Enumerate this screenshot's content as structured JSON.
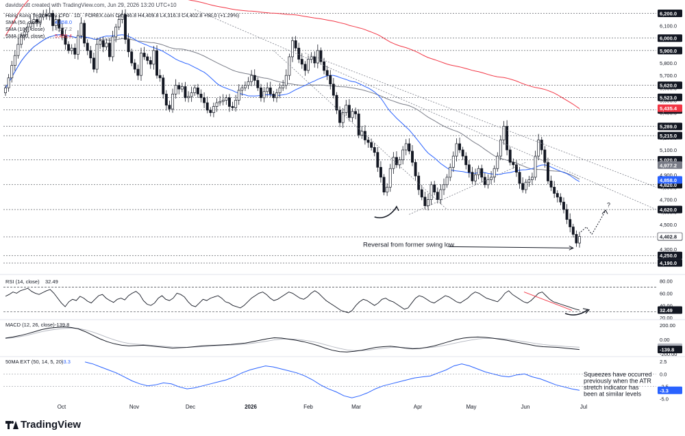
{
  "header": {
    "credit": "davidscutt created with TradingView.com, Jun 29, 2026 13:20 UTC+10"
  },
  "brand": {
    "name": "TradingView",
    "icon": "tradingview-logo-icon"
  },
  "chart_data": [
    {
      "type": "candlestick",
      "panel": "price",
      "title": "Hong Kong Tech Index CFD · 1D · FOREX.com",
      "ohlc_readout": "O4,346.8 H4,409.8 L4,316.3 C4,402.8 +56.0 (+1.29%)",
      "legend": [
        {
          "label": "SMA (50, close)",
          "value": "4,858.0",
          "color": "#2962ff"
        },
        {
          "label": "SMA (100, close)",
          "value": "4,977.2",
          "color": "#787b86"
        },
        {
          "label": "SMA (200, close)",
          "value": "5,435.4",
          "color": "#f23645"
        }
      ],
      "ylim": [
        4130,
        6230
      ],
      "y_ticks": [
        "6,100.0",
        "6,000.0",
        "5,900.0",
        "5,800.0",
        "5,700.0",
        "5,600.0",
        "5,500.0",
        "5,400.0",
        "5,300.0",
        "5,200.0",
        "5,100.0",
        "5,000.0",
        "4,900.0",
        "4,800.0",
        "4,700.0",
        "4,600.0",
        "4,500.0",
        "4,300.0",
        "4,200.0"
      ],
      "y_ticks_values": [
        6100,
        6000,
        5900,
        5800,
        5700,
        5600,
        5500,
        5400,
        5300,
        5200,
        5100,
        5000,
        4900,
        4800,
        4700,
        4600,
        4500,
        4300,
        4200
      ],
      "levels": [
        {
          "label": "6,200.0",
          "value": 6200,
          "style": "dashed",
          "color": "#131722"
        },
        {
          "label": "6,000.0",
          "value": 6000,
          "style": "dashed",
          "color": "#131722"
        },
        {
          "label": "5,900.0",
          "value": 5900,
          "style": "dashed",
          "color": "#131722"
        },
        {
          "label": "5,620.0",
          "value": 5620,
          "style": "dashed",
          "color": "#131722"
        },
        {
          "label": "5,523.0",
          "value": 5523,
          "style": "dashed",
          "color": "#131722"
        },
        {
          "label": "5,422.0",
          "value": 5422,
          "style": "dashed",
          "color": "#131722"
        },
        {
          "label": "5,289.0",
          "value": 5289,
          "style": "dashed",
          "color": "#131722"
        },
        {
          "label": "5,215.0",
          "value": 5215,
          "style": "dashed",
          "color": "#131722"
        },
        {
          "label": "5,020.0",
          "value": 5020,
          "style": "dashed",
          "color": "#131722"
        },
        {
          "label": "4,820.0",
          "value": 4820,
          "style": "dashed",
          "color": "#131722"
        },
        {
          "label": "4,620.0",
          "value": 4620,
          "style": "dashed",
          "color": "#131722"
        },
        {
          "label": "4,400.0",
          "value": 4400,
          "style": "dashed",
          "color": "#131722"
        },
        {
          "label": "4,250.0",
          "value": 4250,
          "style": "dashed",
          "color": "#131722"
        },
        {
          "label": "4,190.0",
          "value": 4190,
          "style": "dashed",
          "color": "#131722"
        }
      ],
      "badges": [
        {
          "label": "5,435.4",
          "value": 5435.4,
          "color": "#f23645"
        },
        {
          "label": "4,977.2",
          "value": 4977.2,
          "color": "#787b86"
        },
        {
          "label": "4,858.0",
          "value": 4858.0,
          "color": "#2962ff"
        },
        {
          "label": "4,402.8",
          "value": 4402.8,
          "color": "#ffffff",
          "text_color": "#131722"
        }
      ],
      "closes": [
        5600,
        5680,
        5780,
        5860,
        5950,
        6020,
        6050,
        6090,
        6120,
        6150,
        6130,
        6170,
        6190,
        6180,
        6200,
        6100,
        6150,
        6080,
        6020,
        5950,
        5900,
        5920,
        5870,
        6020,
        6120,
        5960,
        5900,
        5840,
        5750,
        5950,
        5980,
        5930,
        5960,
        5850,
        6010,
        6090,
        6150,
        6190,
        5990,
        5890,
        5800,
        5750,
        5700,
        5880,
        5850,
        5820,
        5790,
        5900,
        5700,
        5680,
        5550,
        5460,
        5430,
        5550,
        5620,
        5590,
        5610,
        5520,
        5530,
        5560,
        5600,
        5550,
        5520,
        5480,
        5420,
        5400,
        5450,
        5480,
        5490,
        5500,
        5520,
        5450,
        5440,
        5500,
        5580,
        5600,
        5620,
        5650,
        5700,
        5660,
        5600,
        5520,
        5570,
        5600,
        5550,
        5520,
        5560,
        5600,
        5620,
        5700,
        5850,
        5980,
        5920,
        5830,
        5790,
        5740,
        5830,
        5850,
        5800,
        5900,
        5810,
        5740,
        5700,
        5630,
        5540,
        5420,
        5320,
        5400,
        5460,
        5360,
        5410,
        5390,
        5220,
        5250,
        5180,
        5160,
        5120,
        5080,
        4960,
        4880,
        4760,
        4800,
        4950,
        5040,
        4980,
        5020,
        5100,
        5150,
        5090,
        5000,
        4890,
        4780,
        4720,
        4650,
        4700,
        4820,
        4760,
        4700,
        4780,
        4820,
        4880,
        4960,
        5050,
        5150,
        5100,
        5050,
        4980,
        4920,
        4850,
        4900,
        4950,
        4880,
        4820,
        4860,
        4880,
        4950,
        5050,
        5180,
        5290,
        5100,
        5000,
        4980,
        4920,
        4830,
        4780,
        4840,
        4860,
        4880,
        5050,
        5180,
        5100,
        5000,
        4850,
        4800,
        4750,
        4720,
        4680,
        4620,
        4540,
        4480,
        4420,
        4350,
        4402.8
      ],
      "drawings": {
        "annotation_text": "Reversal from former swing low",
        "question_mark": "?"
      },
      "x_labels": [
        "Oct",
        "Nov",
        "Dec",
        "2026",
        "Feb",
        "Mar",
        "Apr",
        "May",
        "Jun",
        "Jul"
      ]
    },
    {
      "type": "line",
      "panel": "rsi",
      "legend": {
        "label": "RSI (14, close)",
        "value": "32.49",
        "color": "#131722"
      },
      "ylim": [
        18,
        85
      ],
      "y_ticks": [
        "80.00",
        "60.00",
        "40.00",
        "20.00"
      ],
      "y_ticks_values": [
        80,
        60,
        40,
        20
      ],
      "levels": [
        70,
        30
      ],
      "last_label": "32.49",
      "values": [
        55,
        58,
        62,
        60,
        64,
        66,
        68,
        63,
        60,
        58,
        61,
        64,
        66,
        60,
        52,
        44,
        38,
        46,
        50,
        48,
        55,
        52,
        47,
        44,
        50,
        56,
        58,
        52,
        48,
        45,
        50,
        52,
        49,
        56,
        60,
        63,
        58,
        48,
        42,
        40,
        44,
        52,
        56,
        50,
        48,
        52,
        60,
        58,
        54,
        46,
        40,
        38,
        44,
        50,
        48,
        52,
        54,
        56,
        52,
        46,
        44,
        40,
        38,
        36,
        40,
        46,
        52,
        56,
        60,
        62,
        58,
        52,
        48,
        50,
        54,
        58,
        62,
        60,
        56,
        52,
        50,
        54,
        60,
        64,
        60,
        54,
        48,
        44,
        40,
        36,
        32,
        30,
        28,
        32,
        40,
        46,
        50,
        48,
        44,
        40,
        44,
        50,
        52,
        48,
        46,
        42,
        38,
        34,
        36,
        44,
        52,
        56,
        54,
        50,
        46,
        44,
        48,
        52,
        56,
        54,
        50,
        46,
        44,
        48,
        52,
        58,
        62,
        60,
        56,
        52,
        50,
        48,
        46,
        52,
        60,
        64,
        58,
        54,
        50,
        46,
        44,
        48,
        54,
        60,
        62,
        56,
        50,
        46,
        44,
        42,
        40,
        38,
        36,
        34,
        32.49
      ]
    },
    {
      "type": "line",
      "panel": "macd",
      "legend": {
        "label": "MACD (12, 26, close)",
        "value": "-139.8",
        "color": "#131722"
      },
      "ylim": [
        -230,
        260
      ],
      "y_ticks": [
        "200.00",
        "0.00",
        "-200.00"
      ],
      "y_ticks_values": [
        200,
        0,
        -200
      ],
      "last_labels": [
        {
          "label": "-107.9",
          "value": -107.9,
          "color": "#b2b5be"
        },
        {
          "label": "-139.8",
          "value": -139.8,
          "color": "#131722"
        }
      ],
      "macd": [
        20,
        35,
        55,
        80,
        110,
        140,
        160,
        170,
        175,
        170,
        150,
        110,
        60,
        10,
        -30,
        -60,
        -80,
        -90,
        -85,
        -80,
        -90,
        -100,
        -110,
        -120,
        -115,
        -110,
        -100,
        -90,
        -85,
        -80,
        -75,
        -70,
        -60,
        -50,
        -30,
        -10,
        10,
        25,
        20,
        5,
        -10,
        -30,
        -55,
        -85,
        -120,
        -150,
        -170,
        -175,
        -165,
        -150,
        -130,
        -110,
        -100,
        -95,
        -105,
        -120,
        -130,
        -125,
        -110,
        -90,
        -60,
        -30,
        0,
        20,
        30,
        35,
        30,
        20,
        5,
        -10,
        -30,
        -50,
        -70,
        -90,
        -100,
        -105,
        -110,
        -120,
        -130,
        -139.8
      ],
      "signal": [
        15,
        25,
        40,
        60,
        85,
        110,
        130,
        145,
        155,
        160,
        155,
        135,
        105,
        70,
        30,
        -5,
        -35,
        -55,
        -65,
        -72,
        -80,
        -88,
        -96,
        -104,
        -108,
        -110,
        -106,
        -100,
        -94,
        -88,
        -83,
        -78,
        -72,
        -65,
        -52,
        -38,
        -22,
        -5,
        5,
        8,
        3,
        -8,
        -24,
        -45,
        -72,
        -100,
        -125,
        -145,
        -155,
        -155,
        -148,
        -135,
        -122,
        -112,
        -108,
        -112,
        -118,
        -120,
        -116,
        -106,
        -90,
        -70,
        -48,
        -26,
        -8,
        8,
        16,
        18,
        14,
        5,
        -8,
        -24,
        -40,
        -56,
        -70,
        -80,
        -88,
        -96,
        -102,
        -107.9
      ]
    },
    {
      "type": "line",
      "panel": "atr_ext",
      "legend": {
        "label": "50MA EXT (50, 14, 5, 20)",
        "value": "-3.3",
        "color": "#2962ff"
      },
      "ylim": [
        -5.6,
        3.2
      ],
      "y_ticks": [
        "2.5",
        "0.0",
        "-2.5",
        "-5.0"
      ],
      "y_ticks_values": [
        2.5,
        0,
        -2.5,
        -5
      ],
      "last_label": "-3.3",
      "values": [
        2.4,
        2.0,
        1.4,
        0.8,
        0.2,
        -0.6,
        -1.4,
        -2.0,
        -2.4,
        -2.2,
        -1.8,
        -2.0,
        -2.6,
        -3.0,
        -2.8,
        -2.4,
        -2.0,
        -1.6,
        -1.2,
        -0.6,
        0.2,
        0.8,
        1.2,
        1.6,
        1.4,
        1.0,
        0.6,
        0.2,
        -0.4,
        -1.2,
        -2.2,
        -3.0,
        -3.6,
        -4.4,
        -4.8,
        -4.4,
        -3.8,
        -3.0,
        -2.4,
        -2.0,
        -1.6,
        -1.2,
        -0.8,
        -0.6,
        -0.4,
        0.2,
        0.8,
        1.6,
        2.0,
        1.6,
        1.0,
        0.4,
        0.0,
        -0.4,
        -0.6,
        -0.2,
        0.0,
        -0.6,
        -1.0,
        -1.6,
        -2.2,
        -2.6,
        -3.0,
        -3.3
      ],
      "annotation": [
        "Squeezes have occurred",
        "previously when the ATR",
        "stretch indicator has",
        "been at similar levels"
      ]
    }
  ]
}
